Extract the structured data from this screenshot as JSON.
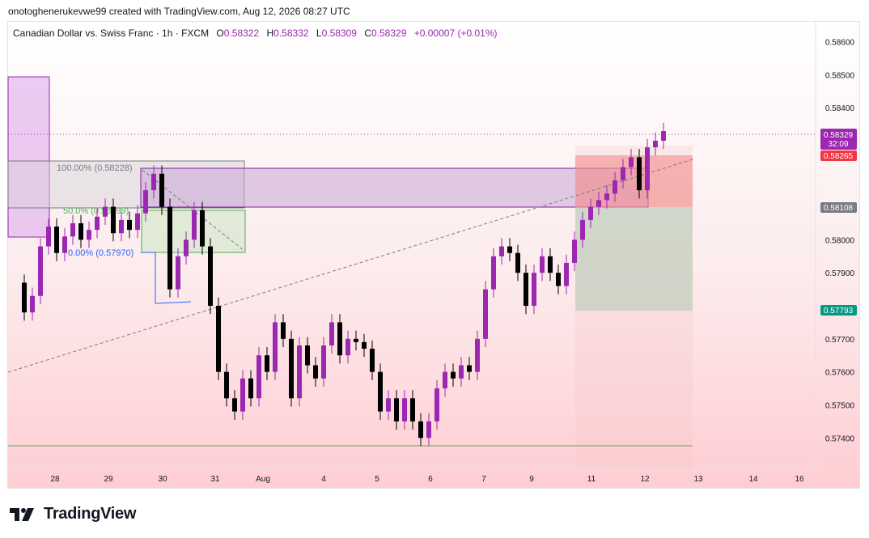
{
  "header": {
    "attribution": "onotoghenerukevwe99 created with TradingView.com, Aug 12, 2026 08:27 UTC"
  },
  "legend": {
    "symbol": "Canadian Dollar vs. Swiss Franc · 1h · FXCM",
    "open_label": "O",
    "open": "0.58322",
    "high_label": "H",
    "high": "0.58332",
    "low_label": "L",
    "low": "0.58309",
    "close_label": "C",
    "close": "0.58329",
    "change": "+0.00007 (+0.01%)"
  },
  "colors": {
    "bull": "#9c27b0",
    "bear": "#000000",
    "accent": "#9c27b0",
    "sell_zone": "#f06e6e",
    "buy_zone": "#8fc9a8"
  },
  "chart_data": {
    "type": "candlestick",
    "symbol": "CADCHF",
    "timeframe": "1h",
    "y_ticks": [
      "0.58600",
      "0.58500",
      "0.58400",
      "0.58000",
      "0.57900",
      "0.57700",
      "0.57600",
      "0.57500",
      "0.57400"
    ],
    "ylim": [
      0.5731,
      0.5866
    ],
    "x_ticks": [
      "28",
      "29",
      "30",
      "31",
      "Aug",
      "4",
      "5",
      "6",
      "7",
      "9",
      "11",
      "12",
      "13",
      "14",
      "16"
    ],
    "price_labels": {
      "current": "0.58329",
      "countdown": "32:09",
      "stop": "0.58265",
      "entry": "0.58108",
      "target": "0.57793"
    },
    "fib_labels": [
      "100.00% (0.58228)",
      "50.0% (0.58099)",
      "0.00% (0.57970)"
    ],
    "fib_levels": [
      0.58228,
      0.58099,
      0.5797
    ],
    "horizontal_line": 0.57383,
    "close_series": [
      [
        0.5,
        0.5787
      ],
      [
        1,
        0.5778
      ],
      [
        1.5,
        0.5783
      ],
      [
        2,
        0.5798
      ],
      [
        2.5,
        0.5804
      ],
      [
        3,
        0.5796
      ],
      [
        3.5,
        0.5801
      ],
      [
        4,
        0.5805
      ],
      [
        4.5,
        0.58
      ],
      [
        5,
        0.5803
      ],
      [
        5.5,
        0.5807
      ],
      [
        6,
        0.581
      ],
      [
        6.5,
        0.5802
      ],
      [
        7,
        0.5806
      ],
      [
        7.5,
        0.5803
      ],
      [
        8,
        0.5808
      ],
      [
        8.5,
        0.5815
      ],
      [
        9,
        0.582
      ],
      [
        9.5,
        0.581
      ],
      [
        10,
        0.5785
      ],
      [
        10.5,
        0.5795
      ],
      [
        11,
        0.58
      ],
      [
        11.5,
        0.5809
      ],
      [
        12,
        0.5798
      ],
      [
        12.5,
        0.578
      ],
      [
        13,
        0.576
      ],
      [
        13.5,
        0.5752
      ],
      [
        14,
        0.5748
      ],
      [
        14.5,
        0.5758
      ],
      [
        15,
        0.5752
      ],
      [
        15.5,
        0.5765
      ],
      [
        16,
        0.576
      ],
      [
        16.5,
        0.5775
      ],
      [
        17,
        0.577
      ],
      [
        17.5,
        0.5752
      ],
      [
        18,
        0.5768
      ],
      [
        18.5,
        0.5762
      ],
      [
        19,
        0.5758
      ],
      [
        19.5,
        0.5768
      ],
      [
        20,
        0.5775
      ],
      [
        20.5,
        0.5765
      ],
      [
        21,
        0.577
      ],
      [
        21.5,
        0.5769
      ],
      [
        22,
        0.5767
      ],
      [
        22.5,
        0.576
      ],
      [
        23,
        0.5748
      ],
      [
        23.5,
        0.5752
      ],
      [
        24,
        0.5745
      ],
      [
        24.5,
        0.5752
      ],
      [
        25,
        0.5745
      ],
      [
        25.5,
        0.574
      ],
      [
        26,
        0.5745
      ],
      [
        26.5,
        0.5755
      ],
      [
        27,
        0.576
      ],
      [
        27.5,
        0.5758
      ],
      [
        28,
        0.5762
      ],
      [
        28.5,
        0.576
      ],
      [
        29,
        0.577
      ],
      [
        29.5,
        0.5785
      ],
      [
        30,
        0.5795
      ],
      [
        30.5,
        0.5798
      ],
      [
        31,
        0.5796
      ],
      [
        31.5,
        0.579
      ],
      [
        32,
        0.578
      ],
      [
        32.5,
        0.579
      ],
      [
        33,
        0.5795
      ],
      [
        33.5,
        0.579
      ],
      [
        34,
        0.5786
      ],
      [
        34.5,
        0.5793
      ],
      [
        35,
        0.58
      ],
      [
        35.5,
        0.5806
      ],
      [
        36,
        0.581
      ],
      [
        36.5,
        0.5812
      ],
      [
        37,
        0.5814
      ],
      [
        37.5,
        0.5818
      ],
      [
        38,
        0.5822
      ],
      [
        38.5,
        0.5825
      ],
      [
        39,
        0.5815
      ],
      [
        39.5,
        0.5828
      ],
      [
        40,
        0.583
      ],
      [
        40.5,
        0.58329
      ]
    ]
  }
}
